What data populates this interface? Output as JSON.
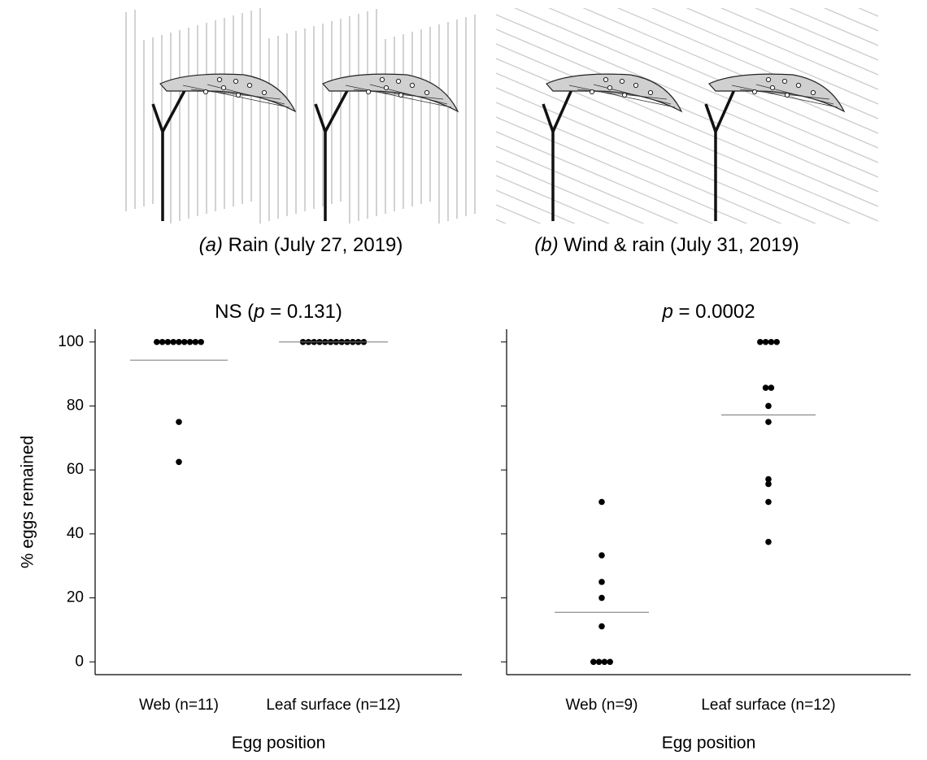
{
  "chart_data": [
    {
      "type": "strip",
      "caption": [
        {
          "text": "(a)",
          "italic": true
        },
        {
          "text": " Rain (July 27, 2019)"
        }
      ],
      "title": [
        {
          "text": "NS ("
        },
        {
          "text": "p",
          "italic": true
        },
        {
          "text": " = 0.131)"
        }
      ],
      "ylabel": "% eggs remained",
      "xlabel": "Egg position",
      "categories": [
        "Web (n=11)",
        "Leaf surface (n=12)"
      ],
      "values": [
        [
          100,
          100,
          100,
          100,
          100,
          100,
          100,
          100,
          100,
          75,
          62.5
        ],
        [
          100,
          100,
          100,
          100,
          100,
          100,
          100,
          100,
          100,
          100,
          100,
          100
        ]
      ],
      "means": [
        94.3,
        100
      ],
      "ylim": [
        -4,
        104
      ],
      "yticks": [
        0,
        20,
        40,
        60,
        80,
        100
      ],
      "ytick_labels": true,
      "color": "#000000"
    },
    {
      "type": "strip",
      "caption": [
        {
          "text": "(b)",
          "italic": true
        },
        {
          "text": " Wind & rain (July 31, 2019)"
        }
      ],
      "title": [
        {
          "text": "p",
          "italic": true
        },
        {
          "text": " = 0.0002"
        }
      ],
      "xlabel": "Egg position",
      "categories": [
        "Web (n=9)",
        "Leaf surface (n=12)"
      ],
      "values": [
        [
          50,
          33.3,
          25,
          20,
          11.1,
          0,
          0,
          0,
          0
        ],
        [
          100,
          100,
          100,
          100,
          85.7,
          85.7,
          80,
          75,
          57.1,
          55.6,
          50,
          37.5
        ]
      ],
      "means": [
        15.5,
        77.2
      ],
      "ylim": [
        -4,
        104
      ],
      "yticks": [
        0,
        20,
        40,
        60,
        80,
        100
      ],
      "ytick_labels": false,
      "color": "#000000"
    }
  ]
}
